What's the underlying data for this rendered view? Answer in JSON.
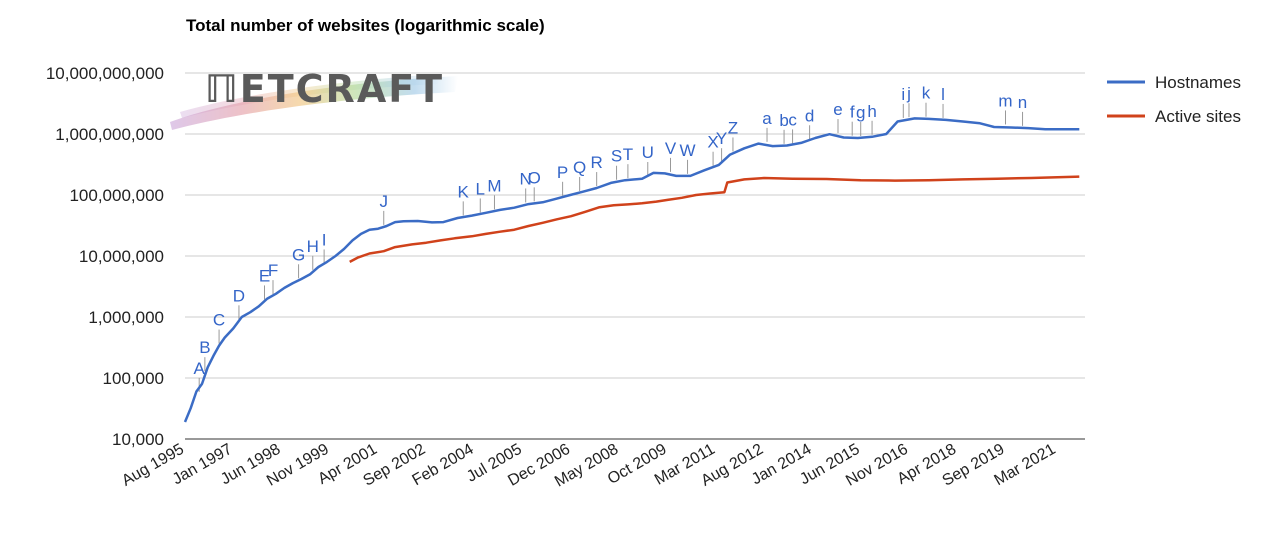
{
  "chart_data": {
    "type": "line",
    "title": "Total number of websites (logarithmic scale)",
    "xlabel": "",
    "ylabel": "",
    "y_scale": "log",
    "ylim": [
      10000,
      10000000000
    ],
    "xlim": [
      "1995-08",
      "2022-01"
    ],
    "y_ticks": [
      {
        "value": 10000,
        "label": "10,000"
      },
      {
        "value": 100000,
        "label": "100,000"
      },
      {
        "value": 1000000,
        "label": "1,000,000"
      },
      {
        "value": 10000000,
        "label": "10,000,000"
      },
      {
        "value": 100000000,
        "label": "100,000,000"
      },
      {
        "value": 1000000000,
        "label": "1,000,000,000"
      },
      {
        "value": 10000000000,
        "label": "10,000,000,000"
      }
    ],
    "x_ticks": [
      {
        "date": "1995-08",
        "label": "Aug 1995"
      },
      {
        "date": "1997-01",
        "label": "Jan 1997"
      },
      {
        "date": "1998-06",
        "label": "Jun 1998"
      },
      {
        "date": "1999-11",
        "label": "Nov 1999"
      },
      {
        "date": "2001-04",
        "label": "Apr 2001"
      },
      {
        "date": "2002-09",
        "label": "Sep 2002"
      },
      {
        "date": "2004-02",
        "label": "Feb 2004"
      },
      {
        "date": "2005-07",
        "label": "Jul 2005"
      },
      {
        "date": "2006-12",
        "label": "Dec 2006"
      },
      {
        "date": "2008-05",
        "label": "May 2008"
      },
      {
        "date": "2009-10",
        "label": "Oct 2009"
      },
      {
        "date": "2011-03",
        "label": "Mar 2011"
      },
      {
        "date": "2012-08",
        "label": "Aug 2012"
      },
      {
        "date": "2014-01",
        "label": "Jan 2014"
      },
      {
        "date": "2015-06",
        "label": "Jun 2015"
      },
      {
        "date": "2016-11",
        "label": "Nov 2016"
      },
      {
        "date": "2018-04",
        "label": "Apr 2018"
      },
      {
        "date": "2019-09",
        "label": "Sep 2019"
      },
      {
        "date": "2021-03",
        "label": "Mar 2021"
      }
    ],
    "grid": true,
    "legend_position": "right",
    "series": [
      {
        "name": "Hostnames",
        "color": "#3b6cc5",
        "points": [
          [
            "1995-08",
            19000
          ],
          [
            "1995-10",
            32000
          ],
          [
            "1995-12",
            60000
          ],
          [
            "1996-02",
            80000
          ],
          [
            "1996-04",
            150000
          ],
          [
            "1996-06",
            230000
          ],
          [
            "1996-08",
            340000
          ],
          [
            "1996-10",
            460000
          ],
          [
            "1997-01",
            650000
          ],
          [
            "1997-04",
            1000000
          ],
          [
            "1997-07",
            1200000
          ],
          [
            "1997-10",
            1500000
          ],
          [
            "1998-01",
            2000000
          ],
          [
            "1998-04",
            2400000
          ],
          [
            "1998-07",
            3000000
          ],
          [
            "1998-10",
            3600000
          ],
          [
            "1999-01",
            4200000
          ],
          [
            "1999-04",
            5000000
          ],
          [
            "1999-07",
            6600000
          ],
          [
            "1999-10",
            8000000
          ],
          [
            "2000-01",
            10000000
          ],
          [
            "2000-04",
            13000000
          ],
          [
            "2000-07",
            18000000
          ],
          [
            "2000-10",
            23000000
          ],
          [
            "2001-01",
            27000000
          ],
          [
            "2001-04",
            28000000
          ],
          [
            "2001-07",
            31000000
          ],
          [
            "2001-10",
            36000000
          ],
          [
            "2002-01",
            37000000
          ],
          [
            "2002-06",
            37500000
          ],
          [
            "2002-11",
            35500000
          ],
          [
            "2003-03",
            36000000
          ],
          [
            "2003-08",
            42000000
          ],
          [
            "2004-01",
            46000000
          ],
          [
            "2004-06",
            51000000
          ],
          [
            "2004-11",
            57000000
          ],
          [
            "2005-04",
            62000000
          ],
          [
            "2005-09",
            71000000
          ],
          [
            "2006-02",
            76000000
          ],
          [
            "2006-06",
            85000000
          ],
          [
            "2006-11",
            98000000
          ],
          [
            "2007-04",
            113000000
          ],
          [
            "2007-09",
            130000000
          ],
          [
            "2008-02",
            158000000
          ],
          [
            "2008-07",
            175000000
          ],
          [
            "2009-01",
            185000000
          ],
          [
            "2009-05",
            230000000
          ],
          [
            "2009-09",
            226000000
          ],
          [
            "2010-01",
            206000000
          ],
          [
            "2010-06",
            206000000
          ],
          [
            "2010-11",
            255000000
          ],
          [
            "2011-04",
            312000000
          ],
          [
            "2011-08",
            460000000
          ],
          [
            "2012-01",
            582000000
          ],
          [
            "2012-06",
            697000000
          ],
          [
            "2012-11",
            634000000
          ],
          [
            "2013-04",
            649000000
          ],
          [
            "2013-09",
            716000000
          ],
          [
            "2014-02",
            860000000
          ],
          [
            "2014-07",
            991000000
          ],
          [
            "2014-12",
            876000000
          ],
          [
            "2015-05",
            860000000
          ],
          [
            "2015-10",
            900000000
          ],
          [
            "2016-03",
            1000000000
          ],
          [
            "2016-07",
            1600000000
          ],
          [
            "2017-01",
            1800000000
          ],
          [
            "2017-06",
            1770000000
          ],
          [
            "2017-12",
            1700000000
          ],
          [
            "2018-06",
            1600000000
          ],
          [
            "2018-12",
            1500000000
          ],
          [
            "2019-05",
            1300000000
          ],
          [
            "2019-11",
            1280000000
          ],
          [
            "2020-05",
            1250000000
          ],
          [
            "2020-11",
            1200000000
          ],
          [
            "2021-05",
            1200000000
          ],
          [
            "2021-11",
            1200000000
          ]
        ]
      },
      {
        "name": "Active sites",
        "color": "#d0421b",
        "points": [
          [
            "2000-06",
            8000000
          ],
          [
            "2000-09",
            9500000
          ],
          [
            "2001-01",
            11000000
          ],
          [
            "2001-06",
            12000000
          ],
          [
            "2001-10",
            14000000
          ],
          [
            "2002-04",
            15500000
          ],
          [
            "2002-09",
            16500000
          ],
          [
            "2003-02",
            18000000
          ],
          [
            "2003-07",
            19500000
          ],
          [
            "2004-01",
            21000000
          ],
          [
            "2004-06",
            23000000
          ],
          [
            "2004-11",
            25000000
          ],
          [
            "2005-04",
            27000000
          ],
          [
            "2005-09",
            31000000
          ],
          [
            "2006-02",
            35000000
          ],
          [
            "2006-07",
            40000000
          ],
          [
            "2006-12",
            45000000
          ],
          [
            "2007-05",
            53000000
          ],
          [
            "2007-10",
            63000000
          ],
          [
            "2008-03",
            68000000
          ],
          [
            "2008-08",
            70000000
          ],
          [
            "2009-01",
            73000000
          ],
          [
            "2009-06",
            78000000
          ],
          [
            "2009-10",
            83000000
          ],
          [
            "2010-03",
            90000000
          ],
          [
            "2010-08",
            100000000
          ],
          [
            "2011-01",
            106000000
          ],
          [
            "2011-06",
            111000000
          ],
          [
            "2011-07",
            160000000
          ],
          [
            "2012-01",
            180000000
          ],
          [
            "2012-08",
            190000000
          ],
          [
            "2013-06",
            185000000
          ],
          [
            "2014-06",
            183000000
          ],
          [
            "2015-06",
            175000000
          ],
          [
            "2016-06",
            172000000
          ],
          [
            "2017-06",
            175000000
          ],
          [
            "2018-06",
            180000000
          ],
          [
            "2019-06",
            185000000
          ],
          [
            "2020-06",
            190000000
          ],
          [
            "2021-11",
            200000000
          ]
        ]
      }
    ],
    "annotations": [
      {
        "label": "A",
        "date": "1996-01",
        "value": 55000
      },
      {
        "label": "B",
        "date": "1996-03",
        "value": 120000
      },
      {
        "label": "C",
        "date": "1996-08",
        "value": 340000
      },
      {
        "label": "D",
        "date": "1997-03",
        "value": 850000
      },
      {
        "label": "E",
        "date": "1997-12",
        "value": 1800000
      },
      {
        "label": "F",
        "date": "1998-03",
        "value": 2200000
      },
      {
        "label": "G",
        "date": "1998-12",
        "value": 4000000
      },
      {
        "label": "H",
        "date": "1999-05",
        "value": 5500000
      },
      {
        "label": "I",
        "date": "1999-09",
        "value": 7000000
      },
      {
        "label": "J",
        "date": "2001-06",
        "value": 30000000
      },
      {
        "label": "K",
        "date": "2003-10",
        "value": 43000000
      },
      {
        "label": "L",
        "date": "2004-04",
        "value": 48000000
      },
      {
        "label": "M",
        "date": "2004-09",
        "value": 54000000
      },
      {
        "label": "N",
        "date": "2005-08",
        "value": 70000000
      },
      {
        "label": "O",
        "date": "2005-11",
        "value": 73000000
      },
      {
        "label": "P",
        "date": "2006-09",
        "value": 90000000
      },
      {
        "label": "Q",
        "date": "2007-03",
        "value": 108000000
      },
      {
        "label": "R",
        "date": "2007-09",
        "value": 130000000
      },
      {
        "label": "S",
        "date": "2008-04",
        "value": 165000000
      },
      {
        "label": "T",
        "date": "2008-08",
        "value": 175000000
      },
      {
        "label": "U",
        "date": "2009-03",
        "value": 190000000
      },
      {
        "label": "V",
        "date": "2009-11",
        "value": 222000000
      },
      {
        "label": "W",
        "date": "2010-05",
        "value": 206000000
      },
      {
        "label": "X",
        "date": "2011-02",
        "value": 280000000
      },
      {
        "label": "Y",
        "date": "2011-05",
        "value": 320000000
      },
      {
        "label": "Z",
        "date": "2011-09",
        "value": 480000000
      },
      {
        "label": "a",
        "date": "2012-09",
        "value": 690000000
      },
      {
        "label": "b",
        "date": "2013-03",
        "value": 640000000
      },
      {
        "label": "c",
        "date": "2013-06",
        "value": 650000000
      },
      {
        "label": "d",
        "date": "2013-12",
        "value": 760000000
      },
      {
        "label": "e",
        "date": "2014-10",
        "value": 960000000
      },
      {
        "label": "f",
        "date": "2015-03",
        "value": 870000000
      },
      {
        "label": "g",
        "date": "2015-06",
        "value": 860000000
      },
      {
        "label": "h",
        "date": "2015-10",
        "value": 900000000
      },
      {
        "label": "i",
        "date": "2016-09",
        "value": 1700000000
      },
      {
        "label": "j",
        "date": "2016-11",
        "value": 1750000000
      },
      {
        "label": "k",
        "date": "2017-05",
        "value": 1780000000
      },
      {
        "label": "l",
        "date": "2017-11",
        "value": 1700000000
      },
      {
        "label": "m",
        "date": "2019-09",
        "value": 1330000000
      },
      {
        "label": "n",
        "date": "2020-03",
        "value": 1260000000
      }
    ]
  },
  "logo": {
    "text": "NETCRAFT",
    "name": "Netcraft"
  }
}
